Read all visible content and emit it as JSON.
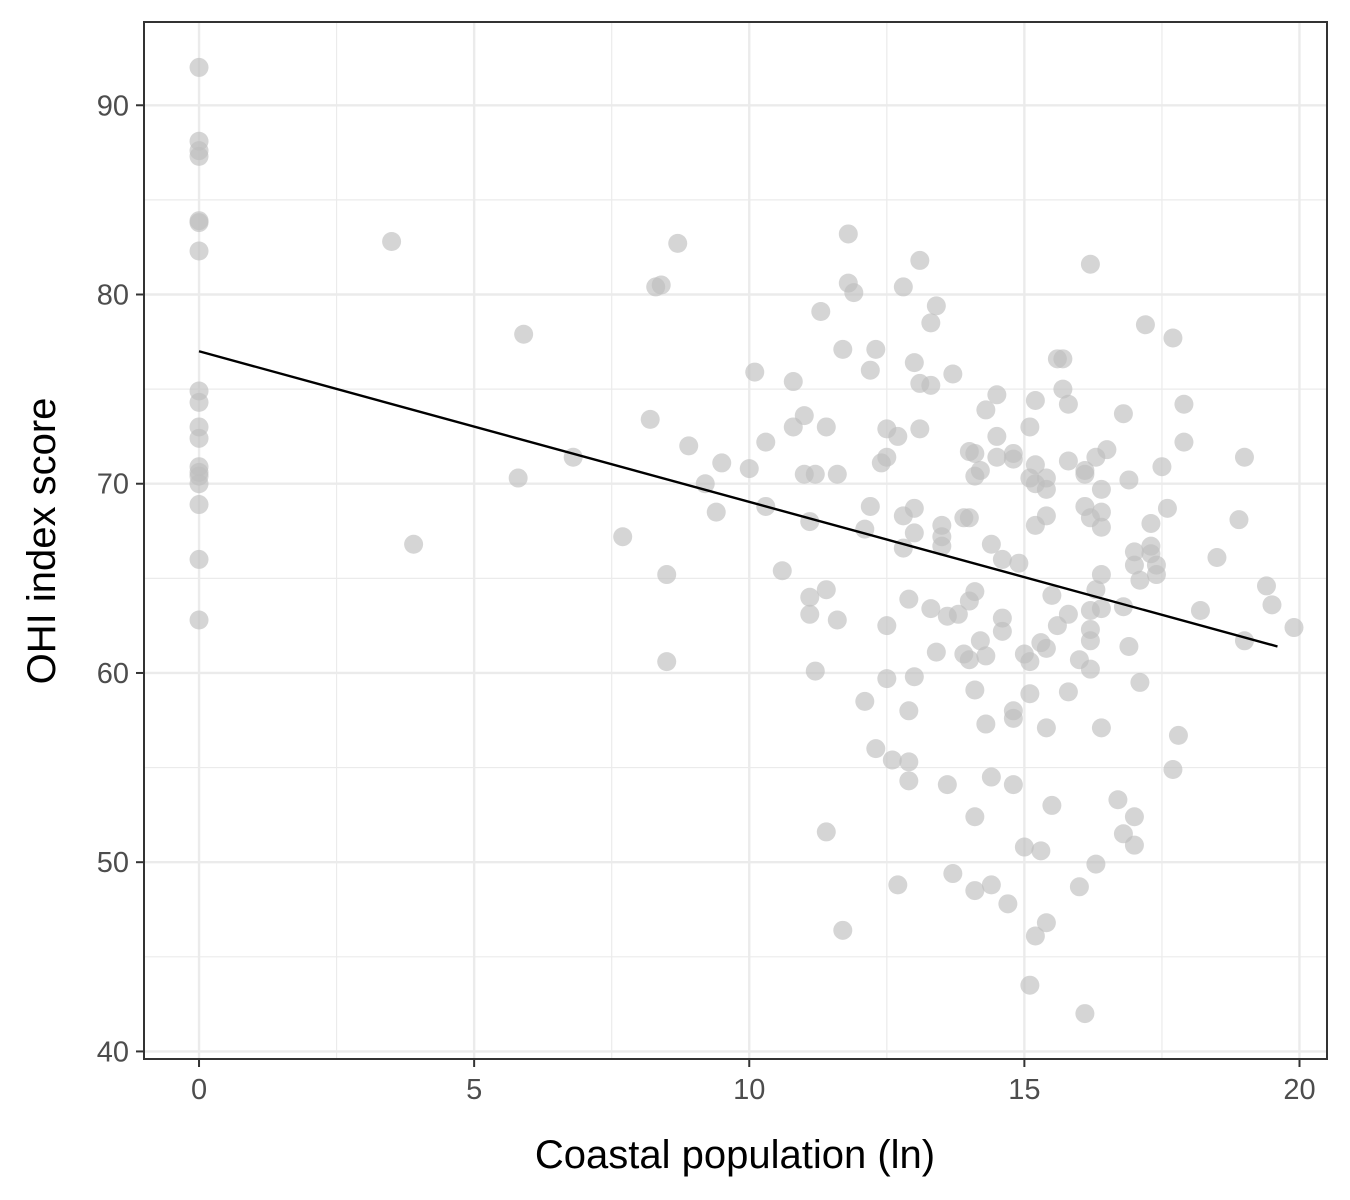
{
  "chart_data": {
    "type": "scatter",
    "title": "",
    "xlabel": "Coastal population (ln)",
    "ylabel": "OHI index score",
    "xlim": [
      -1,
      20.5
    ],
    "ylim": [
      39.6,
      94.4
    ],
    "x_ticks": [
      0,
      5,
      10,
      15,
      20
    ],
    "y_ticks": [
      40,
      50,
      60,
      70,
      80,
      90
    ],
    "grid": true,
    "legend": "none",
    "point_color": "#bfbfbf",
    "line_color": "#000000",
    "trend_line": {
      "x": [
        0,
        19.6
      ],
      "y": [
        77.0,
        61.4
      ]
    },
    "series": [
      {
        "points": [
          [
            0,
            92.0
          ],
          [
            0,
            88.1
          ],
          [
            0,
            87.6
          ],
          [
            0,
            87.3
          ],
          [
            0,
            83.9
          ],
          [
            0,
            83.8
          ],
          [
            0,
            82.3
          ],
          [
            0,
            74.9
          ],
          [
            0,
            74.3
          ],
          [
            0,
            73.0
          ],
          [
            0,
            72.4
          ],
          [
            0,
            70.9
          ],
          [
            0,
            70.6
          ],
          [
            0,
            70.4
          ],
          [
            0,
            70.0
          ],
          [
            0,
            68.9
          ],
          [
            0,
            66.0
          ],
          [
            0,
            62.8
          ],
          [
            3.5,
            82.8
          ],
          [
            3.9,
            66.8
          ],
          [
            5.8,
            70.3
          ],
          [
            5.9,
            77.9
          ],
          [
            6.8,
            71.4
          ],
          [
            7.7,
            67.2
          ],
          [
            8.2,
            73.4
          ],
          [
            8.3,
            80.4
          ],
          [
            8.4,
            80.5
          ],
          [
            8.5,
            65.2
          ],
          [
            8.5,
            60.6
          ],
          [
            8.7,
            82.7
          ],
          [
            8.9,
            72.0
          ],
          [
            9.2,
            70.0
          ],
          [
            9.4,
            68.5
          ],
          [
            9.5,
            71.1
          ],
          [
            10.0,
            70.8
          ],
          [
            10.1,
            75.9
          ],
          [
            10.3,
            72.2
          ],
          [
            10.3,
            68.8
          ],
          [
            10.6,
            65.4
          ],
          [
            10.8,
            75.4
          ],
          [
            10.8,
            73.0
          ],
          [
            11.0,
            73.6
          ],
          [
            11.0,
            70.5
          ],
          [
            11.1,
            68.0
          ],
          [
            11.1,
            64.0
          ],
          [
            11.1,
            63.1
          ],
          [
            11.2,
            60.1
          ],
          [
            11.2,
            70.5
          ],
          [
            11.3,
            79.1
          ],
          [
            11.4,
            73.0
          ],
          [
            11.4,
            64.4
          ],
          [
            11.4,
            51.6
          ],
          [
            11.6,
            70.5
          ],
          [
            11.6,
            62.8
          ],
          [
            11.7,
            77.1
          ],
          [
            11.7,
            46.4
          ],
          [
            11.8,
            80.6
          ],
          [
            11.8,
            83.2
          ],
          [
            11.9,
            80.1
          ],
          [
            12.1,
            67.6
          ],
          [
            12.1,
            58.5
          ],
          [
            12.2,
            76.0
          ],
          [
            12.2,
            68.8
          ],
          [
            12.3,
            77.1
          ],
          [
            12.3,
            56.0
          ],
          [
            12.4,
            71.1
          ],
          [
            12.5,
            72.9
          ],
          [
            12.5,
            71.4
          ],
          [
            12.5,
            62.5
          ],
          [
            12.5,
            59.7
          ],
          [
            12.6,
            55.4
          ],
          [
            12.7,
            48.8
          ],
          [
            12.7,
            72.5
          ],
          [
            12.8,
            80.4
          ],
          [
            12.8,
            68.3
          ],
          [
            12.8,
            66.6
          ],
          [
            12.9,
            63.9
          ],
          [
            12.9,
            58.0
          ],
          [
            12.9,
            55.3
          ],
          [
            12.9,
            54.3
          ],
          [
            13.0,
            76.4
          ],
          [
            13.0,
            68.7
          ],
          [
            13.0,
            67.4
          ],
          [
            13.0,
            59.8
          ],
          [
            13.1,
            81.8
          ],
          [
            13.1,
            75.3
          ],
          [
            13.1,
            72.9
          ],
          [
            13.3,
            78.5
          ],
          [
            13.3,
            75.2
          ],
          [
            13.3,
            63.4
          ],
          [
            13.4,
            79.4
          ],
          [
            13.4,
            61.1
          ],
          [
            13.5,
            67.8
          ],
          [
            13.5,
            66.7
          ],
          [
            13.5,
            67.2
          ],
          [
            13.6,
            63.0
          ],
          [
            13.6,
            54.1
          ],
          [
            13.7,
            75.8
          ],
          [
            13.7,
            49.4
          ],
          [
            13.8,
            63.1
          ],
          [
            13.9,
            68.2
          ],
          [
            13.9,
            61.0
          ],
          [
            14.0,
            71.7
          ],
          [
            14.0,
            68.2
          ],
          [
            14.0,
            63.8
          ],
          [
            14.0,
            60.7
          ],
          [
            14.1,
            71.6
          ],
          [
            14.1,
            70.4
          ],
          [
            14.1,
            64.3
          ],
          [
            14.1,
            59.1
          ],
          [
            14.1,
            52.4
          ],
          [
            14.1,
            48.5
          ],
          [
            14.2,
            70.7
          ],
          [
            14.2,
            61.7
          ],
          [
            14.3,
            73.9
          ],
          [
            14.3,
            60.9
          ],
          [
            14.3,
            57.3
          ],
          [
            14.4,
            66.8
          ],
          [
            14.4,
            54.5
          ],
          [
            14.4,
            48.8
          ],
          [
            14.5,
            74.7
          ],
          [
            14.5,
            72.5
          ],
          [
            14.5,
            71.4
          ],
          [
            14.6,
            66.0
          ],
          [
            14.6,
            62.9
          ],
          [
            14.6,
            62.2
          ],
          [
            14.7,
            47.8
          ],
          [
            14.8,
            71.6
          ],
          [
            14.8,
            71.3
          ],
          [
            14.8,
            58.0
          ],
          [
            14.8,
            57.6
          ],
          [
            14.8,
            54.1
          ],
          [
            14.9,
            65.8
          ],
          [
            15.0,
            61.0
          ],
          [
            15.0,
            50.8
          ],
          [
            15.1,
            73.0
          ],
          [
            15.1,
            70.3
          ],
          [
            15.1,
            60.6
          ],
          [
            15.1,
            58.9
          ],
          [
            15.1,
            43.5
          ],
          [
            15.2,
            74.4
          ],
          [
            15.2,
            71.0
          ],
          [
            15.2,
            70.0
          ],
          [
            15.2,
            67.8
          ],
          [
            15.2,
            46.1
          ],
          [
            15.3,
            61.6
          ],
          [
            15.3,
            50.6
          ],
          [
            15.4,
            70.3
          ],
          [
            15.4,
            69.7
          ],
          [
            15.4,
            68.3
          ],
          [
            15.4,
            61.3
          ],
          [
            15.4,
            57.1
          ],
          [
            15.4,
            46.8
          ],
          [
            15.5,
            64.1
          ],
          [
            15.5,
            53.0
          ],
          [
            15.6,
            76.6
          ],
          [
            15.6,
            62.5
          ],
          [
            15.7,
            76.6
          ],
          [
            15.7,
            75.0
          ],
          [
            15.8,
            74.2
          ],
          [
            15.8,
            71.2
          ],
          [
            15.8,
            63.1
          ],
          [
            15.8,
            59.0
          ],
          [
            16.0,
            60.7
          ],
          [
            16.0,
            48.7
          ],
          [
            16.1,
            70.7
          ],
          [
            16.1,
            70.5
          ],
          [
            16.1,
            68.8
          ],
          [
            16.1,
            42.0
          ],
          [
            16.2,
            81.6
          ],
          [
            16.2,
            68.2
          ],
          [
            16.2,
            63.3
          ],
          [
            16.2,
            62.3
          ],
          [
            16.2,
            61.7
          ],
          [
            16.2,
            60.2
          ],
          [
            16.3,
            71.4
          ],
          [
            16.3,
            64.4
          ],
          [
            16.3,
            49.9
          ],
          [
            16.4,
            69.7
          ],
          [
            16.4,
            68.5
          ],
          [
            16.4,
            67.7
          ],
          [
            16.4,
            65.2
          ],
          [
            16.4,
            63.4
          ],
          [
            16.4,
            57.1
          ],
          [
            16.5,
            71.8
          ],
          [
            16.7,
            53.3
          ],
          [
            16.8,
            73.7
          ],
          [
            16.8,
            63.5
          ],
          [
            16.8,
            51.5
          ],
          [
            16.9,
            70.2
          ],
          [
            16.9,
            61.4
          ],
          [
            17.0,
            66.4
          ],
          [
            17.0,
            65.7
          ],
          [
            17.0,
            52.4
          ],
          [
            17.0,
            50.9
          ],
          [
            17.1,
            64.9
          ],
          [
            17.1,
            59.5
          ],
          [
            17.2,
            78.4
          ],
          [
            17.3,
            66.7
          ],
          [
            17.3,
            67.9
          ],
          [
            17.3,
            66.3
          ],
          [
            17.4,
            65.7
          ],
          [
            17.4,
            65.2
          ],
          [
            17.5,
            70.9
          ],
          [
            17.6,
            68.7
          ],
          [
            17.7,
            54.9
          ],
          [
            17.7,
            77.7
          ],
          [
            17.8,
            56.7
          ],
          [
            17.9,
            74.2
          ],
          [
            17.9,
            72.2
          ],
          [
            18.2,
            63.3
          ],
          [
            18.5,
            66.1
          ],
          [
            18.9,
            68.1
          ],
          [
            19.0,
            71.4
          ],
          [
            19.0,
            61.7
          ],
          [
            19.4,
            64.6
          ],
          [
            19.5,
            63.6
          ],
          [
            19.9,
            62.4
          ]
        ]
      }
    ]
  }
}
